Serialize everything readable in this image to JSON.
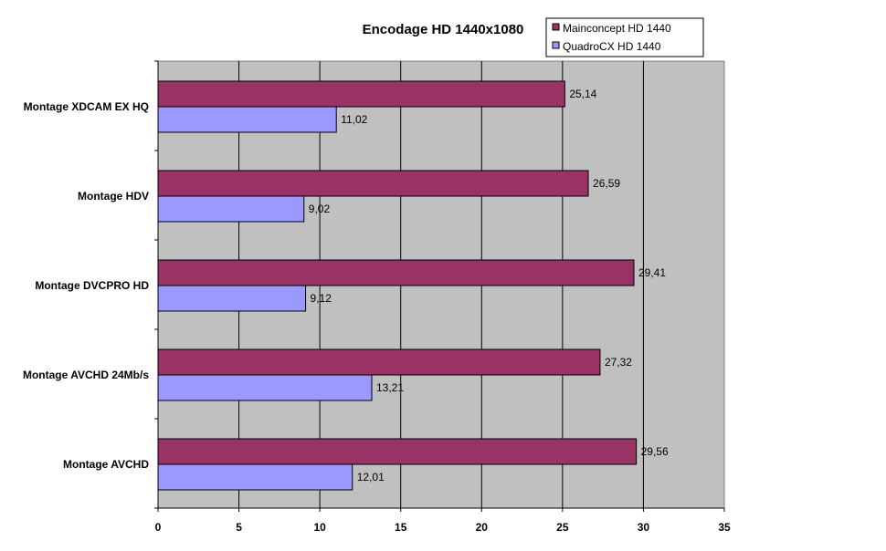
{
  "chart_data": {
    "type": "bar",
    "orientation": "horizontal",
    "title": "Encodage HD 1440x1080",
    "categories": [
      "Montage XDCAM EX HQ",
      "Montage HDV",
      "Montage DVCPRO HD",
      "Montage AVCHD 24Mb/s",
      "Montage AVCHD"
    ],
    "series": [
      {
        "name": "Mainconcept HD 1440",
        "color": "#993366",
        "values": [
          25.14,
          26.59,
          29.41,
          27.32,
          29.56
        ],
        "labels": [
          "25,14",
          "26,59",
          "29,41",
          "27,32",
          "29,56"
        ]
      },
      {
        "name": "QuadroCX HD 1440",
        "color": "#9999ff",
        "values": [
          11.02,
          9.02,
          9.12,
          13.21,
          12.01
        ],
        "labels": [
          "11,02",
          "9,02",
          "9,12",
          "13,21",
          "12,01"
        ]
      }
    ],
    "xlim": [
      0,
      35
    ],
    "xticks": [
      0,
      5,
      10,
      15,
      20,
      25,
      30,
      35
    ],
    "grid": true,
    "plot_background": "#c0c0c0",
    "legend_position": "top-right"
  }
}
